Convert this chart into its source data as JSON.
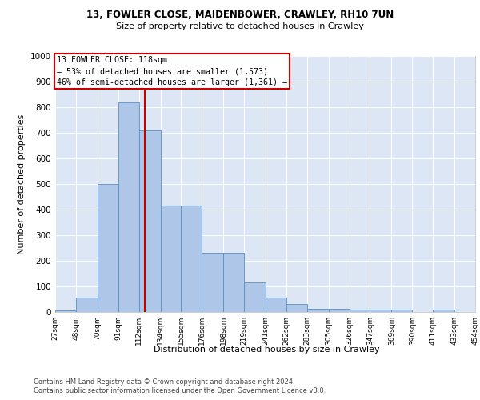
{
  "title1": "13, FOWLER CLOSE, MAIDENBOWER, CRAWLEY, RH10 7UN",
  "title2": "Size of property relative to detached houses in Crawley",
  "xlabel": "Distribution of detached houses by size in Crawley",
  "ylabel": "Number of detached properties",
  "footer1": "Contains HM Land Registry data © Crown copyright and database right 2024.",
  "footer2": "Contains public sector information licensed under the Open Government Licence v3.0.",
  "annotation_line1": "13 FOWLER CLOSE: 118sqm",
  "annotation_line2": "← 53% of detached houses are smaller (1,573)",
  "annotation_line3": "46% of semi-detached houses are larger (1,361) →",
  "property_size": 118,
  "bin_edges": [
    27,
    48,
    70,
    91,
    112,
    134,
    155,
    176,
    198,
    219,
    241,
    262,
    283,
    305,
    326,
    347,
    369,
    390,
    411,
    433,
    454
  ],
  "bar_heights": [
    5,
    57,
    500,
    820,
    710,
    415,
    415,
    230,
    230,
    115,
    57,
    30,
    13,
    13,
    10,
    10,
    8,
    0,
    8,
    0
  ],
  "bar_color": "#aec6e8",
  "bar_edge_color": "#5a8fc0",
  "vline_color": "#cc0000",
  "bg_color": "#dce6f5",
  "grid_color": "#ffffff",
  "ylim": [
    0,
    1000
  ],
  "yticks": [
    0,
    100,
    200,
    300,
    400,
    500,
    600,
    700,
    800,
    900,
    1000
  ]
}
